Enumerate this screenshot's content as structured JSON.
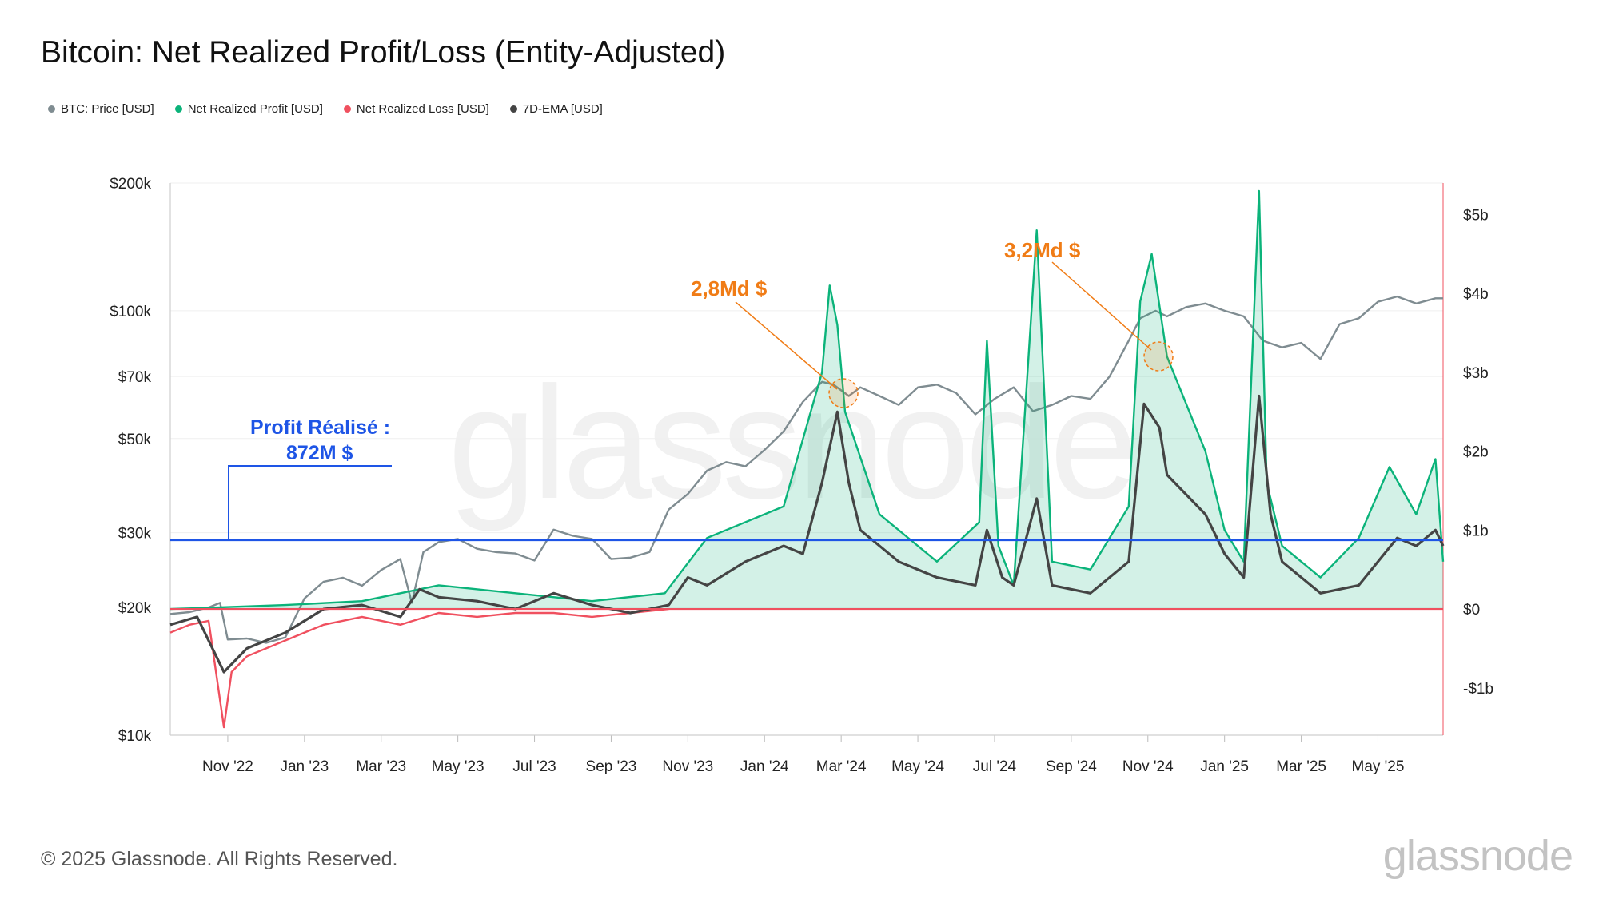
{
  "title": "Bitcoin: Net Realized Profit/Loss (Entity-Adjusted)",
  "legend": [
    {
      "label": "BTC: Price [USD]",
      "color": "#7f8c91"
    },
    {
      "label": "Net Realized Profit [USD]",
      "color": "#0bb37a"
    },
    {
      "label": "Net Realized Loss [USD]",
      "color": "#f0505f"
    },
    {
      "label": "7D-EMA [USD]",
      "color": "#444444"
    }
  ],
  "copyright": "© 2025 Glassnode. All Rights Reserved.",
  "brand": "glassnode",
  "watermark": "glassnode",
  "annotations": {
    "left": {
      "line1": "Profit Réalisé :",
      "line2": "872M $"
    },
    "peak1": "2,8Md $",
    "peak2": "3,2Md $"
  },
  "chart_data": {
    "type": "line",
    "title": "Bitcoin: Net Realized Profit/Loss (Entity-Adjusted)",
    "x_tick_labels": [
      "Nov '22",
      "Jan '23",
      "Mar '23",
      "May '23",
      "Jul '23",
      "Sep '23",
      "Nov '23",
      "Jan '24",
      "Mar '24",
      "May '24",
      "Jul '24",
      "Sep '24",
      "Nov '24",
      "Jan '25",
      "Mar '25",
      "May '25"
    ],
    "x_range_months": [
      0,
      33.2
    ],
    "left_axis": {
      "scale": "log",
      "range": [
        10000,
        200000
      ],
      "ticks": [
        {
          "v": 10000,
          "label": "$10k"
        },
        {
          "v": 20000,
          "label": "$20k"
        },
        {
          "v": 30000,
          "label": "$30k"
        },
        {
          "v": 50000,
          "label": "$50k"
        },
        {
          "v": 70000,
          "label": "$70k"
        },
        {
          "v": 100000,
          "label": "$100k"
        },
        {
          "v": 200000,
          "label": "$200k"
        }
      ]
    },
    "right_axis": {
      "scale": "linear",
      "unit": "billion USD",
      "range": [
        -1.6,
        5.4
      ],
      "ticks": [
        {
          "v": -1,
          "label": "-$1b"
        },
        {
          "v": 0,
          "label": "$0"
        },
        {
          "v": 1,
          "label": "$1b"
        },
        {
          "v": 2,
          "label": "$2b"
        },
        {
          "v": 3,
          "label": "$3b"
        },
        {
          "v": 4,
          "label": "$4b"
        },
        {
          "v": 5,
          "label": "$5b"
        }
      ]
    },
    "reference_lines": [
      {
        "name": "profit-872M",
        "value_b": 0.872,
        "color": "#1e55e6"
      },
      {
        "name": "zero-loss",
        "value_b": 0,
        "color": "#f0505f"
      }
    ],
    "series": [
      {
        "name": "BTC: Price [USD]",
        "axis": "left",
        "color": "#7f8c91",
        "points": [
          [
            0,
            19300
          ],
          [
            0.5,
            19500
          ],
          [
            1,
            20000
          ],
          [
            1.3,
            20500
          ],
          [
            1.5,
            16800
          ],
          [
            2,
            16900
          ],
          [
            2.5,
            16500
          ],
          [
            3,
            17000
          ],
          [
            3.5,
            21000
          ],
          [
            4,
            23000
          ],
          [
            4.5,
            23500
          ],
          [
            5,
            22500
          ],
          [
            5.5,
            24500
          ],
          [
            6,
            26000
          ],
          [
            6.3,
            20500
          ],
          [
            6.6,
            27000
          ],
          [
            7,
            28500
          ],
          [
            7.5,
            29000
          ],
          [
            8,
            27500
          ],
          [
            8.5,
            27000
          ],
          [
            9,
            26800
          ],
          [
            9.5,
            25800
          ],
          [
            10,
            30500
          ],
          [
            10.5,
            29500
          ],
          [
            11,
            29000
          ],
          [
            11.5,
            26000
          ],
          [
            12,
            26200
          ],
          [
            12.5,
            27000
          ],
          [
            13,
            34000
          ],
          [
            13.5,
            37000
          ],
          [
            14,
            42000
          ],
          [
            14.5,
            44000
          ],
          [
            15,
            43000
          ],
          [
            15.5,
            47000
          ],
          [
            16,
            52000
          ],
          [
            16.5,
            61000
          ],
          [
            17,
            68000
          ],
          [
            17.3,
            67000
          ],
          [
            17.7,
            63000
          ],
          [
            18,
            66000
          ],
          [
            18.5,
            63000
          ],
          [
            19,
            60000
          ],
          [
            19.5,
            66000
          ],
          [
            20,
            67000
          ],
          [
            20.5,
            64000
          ],
          [
            21,
            57000
          ],
          [
            21.5,
            62000
          ],
          [
            22,
            66000
          ],
          [
            22.5,
            58000
          ],
          [
            23,
            60000
          ],
          [
            23.5,
            63000
          ],
          [
            24,
            62000
          ],
          [
            24.5,
            70000
          ],
          [
            25,
            85000
          ],
          [
            25.3,
            96000
          ],
          [
            25.7,
            100000
          ],
          [
            26,
            97000
          ],
          [
            26.5,
            102000
          ],
          [
            27,
            104000
          ],
          [
            27.5,
            100000
          ],
          [
            28,
            97000
          ],
          [
            28.5,
            85000
          ],
          [
            29,
            82000
          ],
          [
            29.5,
            84000
          ],
          [
            30,
            77000
          ],
          [
            30.5,
            93000
          ],
          [
            31,
            96000
          ],
          [
            31.5,
            105000
          ],
          [
            32,
            108000
          ],
          [
            32.5,
            104000
          ],
          [
            33,
            107000
          ],
          [
            33.2,
            107000
          ]
        ]
      },
      {
        "name": "Net Realized Profit [USD]",
        "axis": "right",
        "unit": "billion USD",
        "color": "#0bb37a",
        "points": [
          [
            0,
            0
          ],
          [
            3,
            0.05
          ],
          [
            5,
            0.1
          ],
          [
            7,
            0.3
          ],
          [
            9,
            0.2
          ],
          [
            11,
            0.1
          ],
          [
            12.9,
            0.2
          ],
          [
            14,
            0.9
          ],
          [
            16,
            1.3
          ],
          [
            17,
            3.0
          ],
          [
            17.2,
            4.1
          ],
          [
            17.4,
            3.6
          ],
          [
            17.6,
            2.5
          ],
          [
            18.5,
            1.2
          ],
          [
            20,
            0.6
          ],
          [
            21.1,
            1.1
          ],
          [
            21.3,
            3.4
          ],
          [
            21.6,
            0.8
          ],
          [
            22,
            0.3
          ],
          [
            22.6,
            4.8
          ],
          [
            23,
            0.6
          ],
          [
            24,
            0.5
          ],
          [
            25,
            1.3
          ],
          [
            25.3,
            3.9
          ],
          [
            25.6,
            4.5
          ],
          [
            26,
            3.2
          ],
          [
            27,
            2.0
          ],
          [
            27.5,
            1.0
          ],
          [
            28,
            0.6
          ],
          [
            28.4,
            5.3
          ],
          [
            28.6,
            1.6
          ],
          [
            29,
            0.8
          ],
          [
            30,
            0.4
          ],
          [
            31,
            0.9
          ],
          [
            31.8,
            1.8
          ],
          [
            32.5,
            1.2
          ],
          [
            33,
            1.9
          ],
          [
            33.2,
            0.6
          ]
        ]
      },
      {
        "name": "Net Realized Loss [USD]",
        "axis": "right",
        "unit": "billion USD",
        "color": "#f0505f",
        "points": [
          [
            0,
            -0.3
          ],
          [
            0.5,
            -0.2
          ],
          [
            1,
            -0.15
          ],
          [
            1.4,
            -1.5
          ],
          [
            1.6,
            -0.8
          ],
          [
            2,
            -0.6
          ],
          [
            3,
            -0.4
          ],
          [
            4,
            -0.2
          ],
          [
            5,
            -0.1
          ],
          [
            6,
            -0.2
          ],
          [
            7,
            -0.05
          ],
          [
            8,
            -0.1
          ],
          [
            9,
            -0.05
          ],
          [
            10,
            -0.05
          ],
          [
            11,
            -0.1
          ],
          [
            12,
            -0.05
          ],
          [
            13,
            0
          ]
        ]
      },
      {
        "name": "7D-EMA [USD]",
        "axis": "right",
        "unit": "billion USD",
        "color": "#444444",
        "points": [
          [
            0,
            -0.2
          ],
          [
            0.7,
            -0.1
          ],
          [
            1.4,
            -0.8
          ],
          [
            2,
            -0.5
          ],
          [
            3,
            -0.3
          ],
          [
            4,
            0.0
          ],
          [
            5,
            0.05
          ],
          [
            6,
            -0.1
          ],
          [
            6.5,
            0.25
          ],
          [
            7,
            0.15
          ],
          [
            8,
            0.1
          ],
          [
            9,
            0.0
          ],
          [
            10,
            0.2
          ],
          [
            11,
            0.05
          ],
          [
            12,
            -0.05
          ],
          [
            13,
            0.05
          ],
          [
            13.5,
            0.4
          ],
          [
            14,
            0.3
          ],
          [
            15,
            0.6
          ],
          [
            16,
            0.8
          ],
          [
            16.5,
            0.7
          ],
          [
            17,
            1.6
          ],
          [
            17.4,
            2.5
          ],
          [
            17.7,
            1.6
          ],
          [
            18,
            1.0
          ],
          [
            19,
            0.6
          ],
          [
            20,
            0.4
          ],
          [
            21,
            0.3
          ],
          [
            21.3,
            1.0
          ],
          [
            21.7,
            0.4
          ],
          [
            22,
            0.3
          ],
          [
            22.6,
            1.4
          ],
          [
            23,
            0.3
          ],
          [
            24,
            0.2
          ],
          [
            25,
            0.6
          ],
          [
            25.4,
            2.6
          ],
          [
            25.8,
            2.3
          ],
          [
            26,
            1.7
          ],
          [
            27,
            1.2
          ],
          [
            27.5,
            0.7
          ],
          [
            28,
            0.4
          ],
          [
            28.4,
            2.7
          ],
          [
            28.7,
            1.2
          ],
          [
            29,
            0.6
          ],
          [
            30,
            0.2
          ],
          [
            31,
            0.3
          ],
          [
            32,
            0.9
          ],
          [
            32.5,
            0.8
          ],
          [
            33,
            1.0
          ],
          [
            33.2,
            0.8
          ]
        ]
      }
    ]
  }
}
